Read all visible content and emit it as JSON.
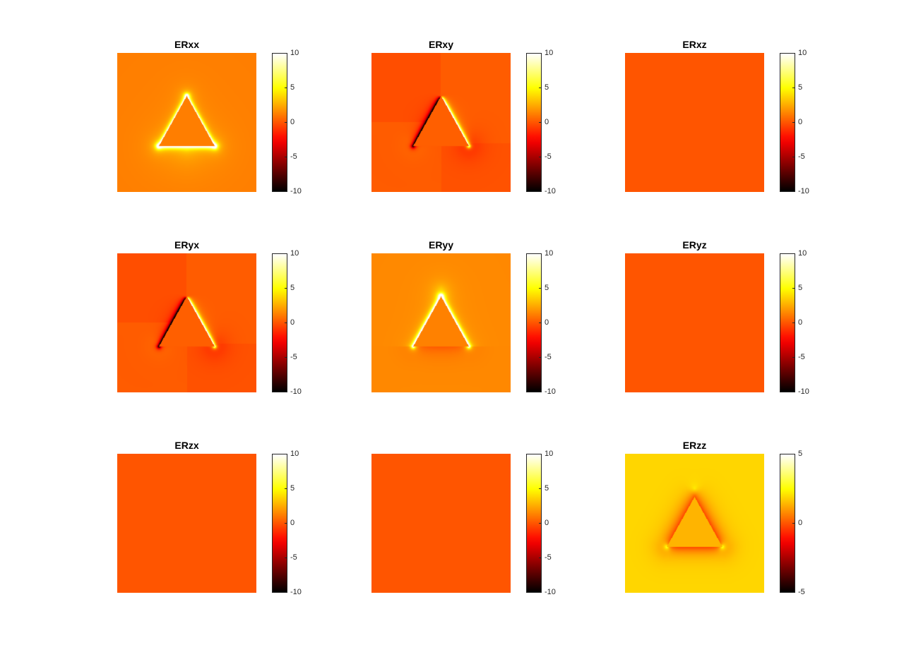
{
  "chart_data": [
    {
      "type": "heatmap",
      "title": "ERxx",
      "pattern": "xx",
      "uniform": false,
      "colormap": "hot",
      "clim": [
        -10,
        10
      ],
      "colorbar_ticks": [
        "10",
        "5",
        "0",
        "-5",
        "-10"
      ]
    },
    {
      "type": "heatmap",
      "title": "ERxy",
      "pattern": "xy",
      "uniform": false,
      "colormap": "hot",
      "clim": [
        -10,
        10
      ],
      "colorbar_ticks": [
        "10",
        "5",
        "0",
        "-5",
        "-10"
      ]
    },
    {
      "type": "heatmap",
      "title": "ERxz",
      "pattern": "uniform",
      "uniform": true,
      "value": 0,
      "colormap": "hot",
      "clim": [
        -10,
        10
      ],
      "colorbar_ticks": [
        "10",
        "5",
        "0",
        "-5",
        "-10"
      ]
    },
    {
      "type": "heatmap",
      "title": "ERyx",
      "pattern": "xy",
      "uniform": false,
      "colormap": "hot",
      "clim": [
        -10,
        10
      ],
      "colorbar_ticks": [
        "10",
        "5",
        "0",
        "-5",
        "-10"
      ]
    },
    {
      "type": "heatmap",
      "title": "ERyy",
      "pattern": "yy",
      "uniform": false,
      "colormap": "hot",
      "clim": [
        -10,
        10
      ],
      "colorbar_ticks": [
        "10",
        "5",
        "0",
        "-5",
        "-10"
      ]
    },
    {
      "type": "heatmap",
      "title": "ERyz",
      "pattern": "uniform",
      "uniform": true,
      "value": 0,
      "colormap": "hot",
      "clim": [
        -10,
        10
      ],
      "colorbar_ticks": [
        "10",
        "5",
        "0",
        "-5",
        "-10"
      ]
    },
    {
      "type": "heatmap",
      "title": "ERzx",
      "pattern": "uniform",
      "uniform": true,
      "value": 0,
      "colormap": "hot",
      "clim": [
        -10,
        10
      ],
      "colorbar_ticks": [
        "10",
        "5",
        "0",
        "-5",
        "-10"
      ]
    },
    {
      "type": "heatmap",
      "title": "",
      "pattern": "uniform",
      "uniform": true,
      "value": 0,
      "colormap": "hot",
      "clim": [
        -10,
        10
      ],
      "colorbar_ticks": [
        "10",
        "5",
        "0",
        "-5",
        "-10"
      ]
    },
    {
      "type": "heatmap",
      "title": "ERzz",
      "pattern": "zz",
      "uniform": false,
      "colormap": "hot",
      "clim": [
        -5,
        5
      ],
      "colorbar_ticks": [
        "5",
        "0",
        "-5"
      ]
    }
  ]
}
